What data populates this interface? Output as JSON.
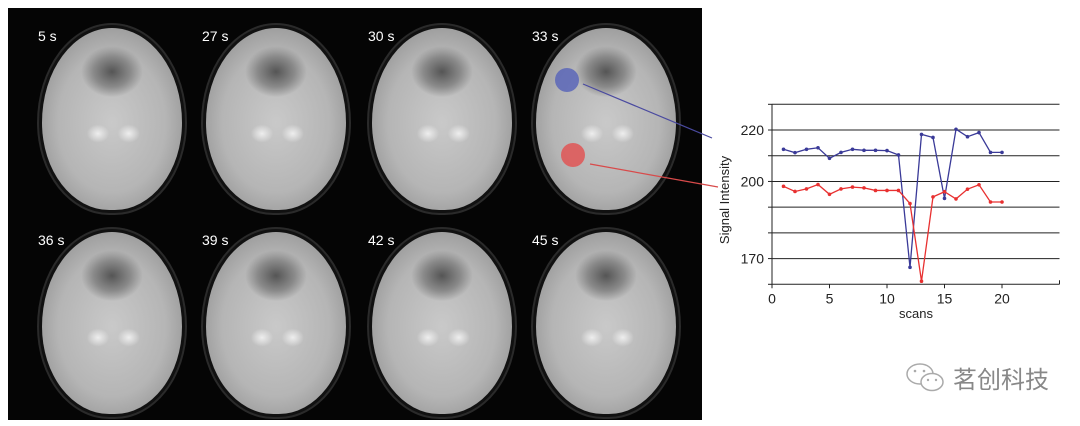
{
  "frames": [
    {
      "label": "5 s"
    },
    {
      "label": "27 s"
    },
    {
      "label": "30 s"
    },
    {
      "label": "33 s"
    },
    {
      "label": "36 s"
    },
    {
      "label": "39 s"
    },
    {
      "label": "42 s"
    },
    {
      "label": "45 s"
    }
  ],
  "roi_colors": {
    "blue": "#5a66b8",
    "red": "#e05555"
  },
  "watermark": {
    "text": "茗创科技",
    "icon": "wechat-icon"
  },
  "chart_data": {
    "type": "line",
    "title": "",
    "xlabel": "scans",
    "ylabel": "Signal Intensity",
    "xlim": [
      0,
      25
    ],
    "ylim": [
      160,
      230
    ],
    "xticks": [
      0,
      5,
      10,
      15,
      20
    ],
    "yticks": [
      170,
      200,
      220
    ],
    "grid": "horizontal every 10",
    "x": [
      1,
      2,
      3,
      4,
      5,
      6,
      7,
      8,
      9,
      10,
      11,
      12,
      13,
      14,
      15,
      16,
      17,
      18,
      19,
      20
    ],
    "series": [
      {
        "color": "#3a3a98",
        "values": [
          212.5,
          211.2,
          212.5,
          213.1,
          209,
          211.3,
          212.5,
          212.1,
          212.1,
          212,
          210.3,
          166.6,
          218.3,
          217.1,
          193.4,
          220.3,
          217.4,
          219,
          211.3,
          211.3
        ]
      },
      {
        "color": "#e83030",
        "values": [
          198.1,
          196.1,
          197.1,
          198.8,
          195,
          197.1,
          197.8,
          197.5,
          196.5,
          196.5,
          196.5,
          191.4,
          161.2,
          194,
          196,
          193.2,
          197,
          198.7,
          192,
          192
        ]
      }
    ]
  }
}
